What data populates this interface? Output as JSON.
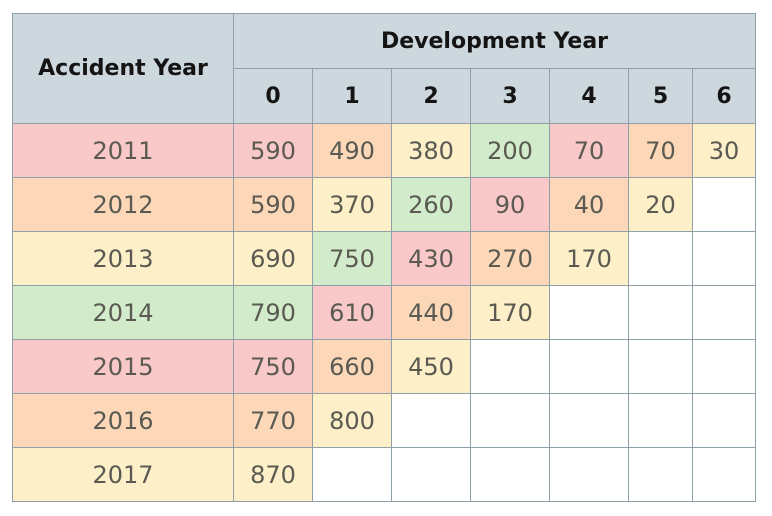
{
  "table": {
    "row_header": "Accident Year",
    "group_header": "Development Year",
    "dev_columns": [
      "0",
      "1",
      "2",
      "3",
      "4",
      "5",
      "6"
    ],
    "colors": {
      "red": "#f9c8c8",
      "orange": "#fcd8b8",
      "yellow": "#fdf0c8",
      "green": "#d2eccb",
      "header": "#cdd8de",
      "border": "#8fa0a8"
    },
    "rows": [
      {
        "year": "2011",
        "year_color": "red",
        "cells": [
          {
            "v": "590",
            "c": "red"
          },
          {
            "v": "490",
            "c": "orange"
          },
          {
            "v": "380",
            "c": "yellow"
          },
          {
            "v": "200",
            "c": "green"
          },
          {
            "v": "70",
            "c": "red"
          },
          {
            "v": "70",
            "c": "orange"
          },
          {
            "v": "30",
            "c": "yellow"
          }
        ]
      },
      {
        "year": "2012",
        "year_color": "orange",
        "cells": [
          {
            "v": "590",
            "c": "orange"
          },
          {
            "v": "370",
            "c": "yellow"
          },
          {
            "v": "260",
            "c": "green"
          },
          {
            "v": "90",
            "c": "red"
          },
          {
            "v": "40",
            "c": "orange"
          },
          {
            "v": "20",
            "c": "yellow"
          },
          {
            "v": "",
            "c": "empty"
          }
        ]
      },
      {
        "year": "2013",
        "year_color": "yellow",
        "cells": [
          {
            "v": "690",
            "c": "yellow"
          },
          {
            "v": "750",
            "c": "green"
          },
          {
            "v": "430",
            "c": "red"
          },
          {
            "v": "270",
            "c": "orange"
          },
          {
            "v": "170",
            "c": "yellow"
          },
          {
            "v": "",
            "c": "empty"
          },
          {
            "v": "",
            "c": "empty"
          }
        ]
      },
      {
        "year": "2014",
        "year_color": "green",
        "cells": [
          {
            "v": "790",
            "c": "green"
          },
          {
            "v": "610",
            "c": "red"
          },
          {
            "v": "440",
            "c": "orange"
          },
          {
            "v": "170",
            "c": "yellow"
          },
          {
            "v": "",
            "c": "empty"
          },
          {
            "v": "",
            "c": "empty"
          },
          {
            "v": "",
            "c": "empty"
          }
        ]
      },
      {
        "year": "2015",
        "year_color": "red",
        "cells": [
          {
            "v": "750",
            "c": "red"
          },
          {
            "v": "660",
            "c": "orange"
          },
          {
            "v": "450",
            "c": "yellow"
          },
          {
            "v": "",
            "c": "empty"
          },
          {
            "v": "",
            "c": "empty"
          },
          {
            "v": "",
            "c": "empty"
          },
          {
            "v": "",
            "c": "empty"
          }
        ]
      },
      {
        "year": "2016",
        "year_color": "orange",
        "cells": [
          {
            "v": "770",
            "c": "orange"
          },
          {
            "v": "800",
            "c": "yellow"
          },
          {
            "v": "",
            "c": "empty"
          },
          {
            "v": "",
            "c": "empty"
          },
          {
            "v": "",
            "c": "empty"
          },
          {
            "v": "",
            "c": "empty"
          },
          {
            "v": "",
            "c": "empty"
          }
        ]
      },
      {
        "year": "2017",
        "year_color": "yellow",
        "cells": [
          {
            "v": "870",
            "c": "yellow"
          },
          {
            "v": "",
            "c": "empty"
          },
          {
            "v": "",
            "c": "empty"
          },
          {
            "v": "",
            "c": "empty"
          },
          {
            "v": "",
            "c": "empty"
          },
          {
            "v": "",
            "c": "empty"
          },
          {
            "v": "",
            "c": "empty"
          }
        ]
      }
    ]
  }
}
